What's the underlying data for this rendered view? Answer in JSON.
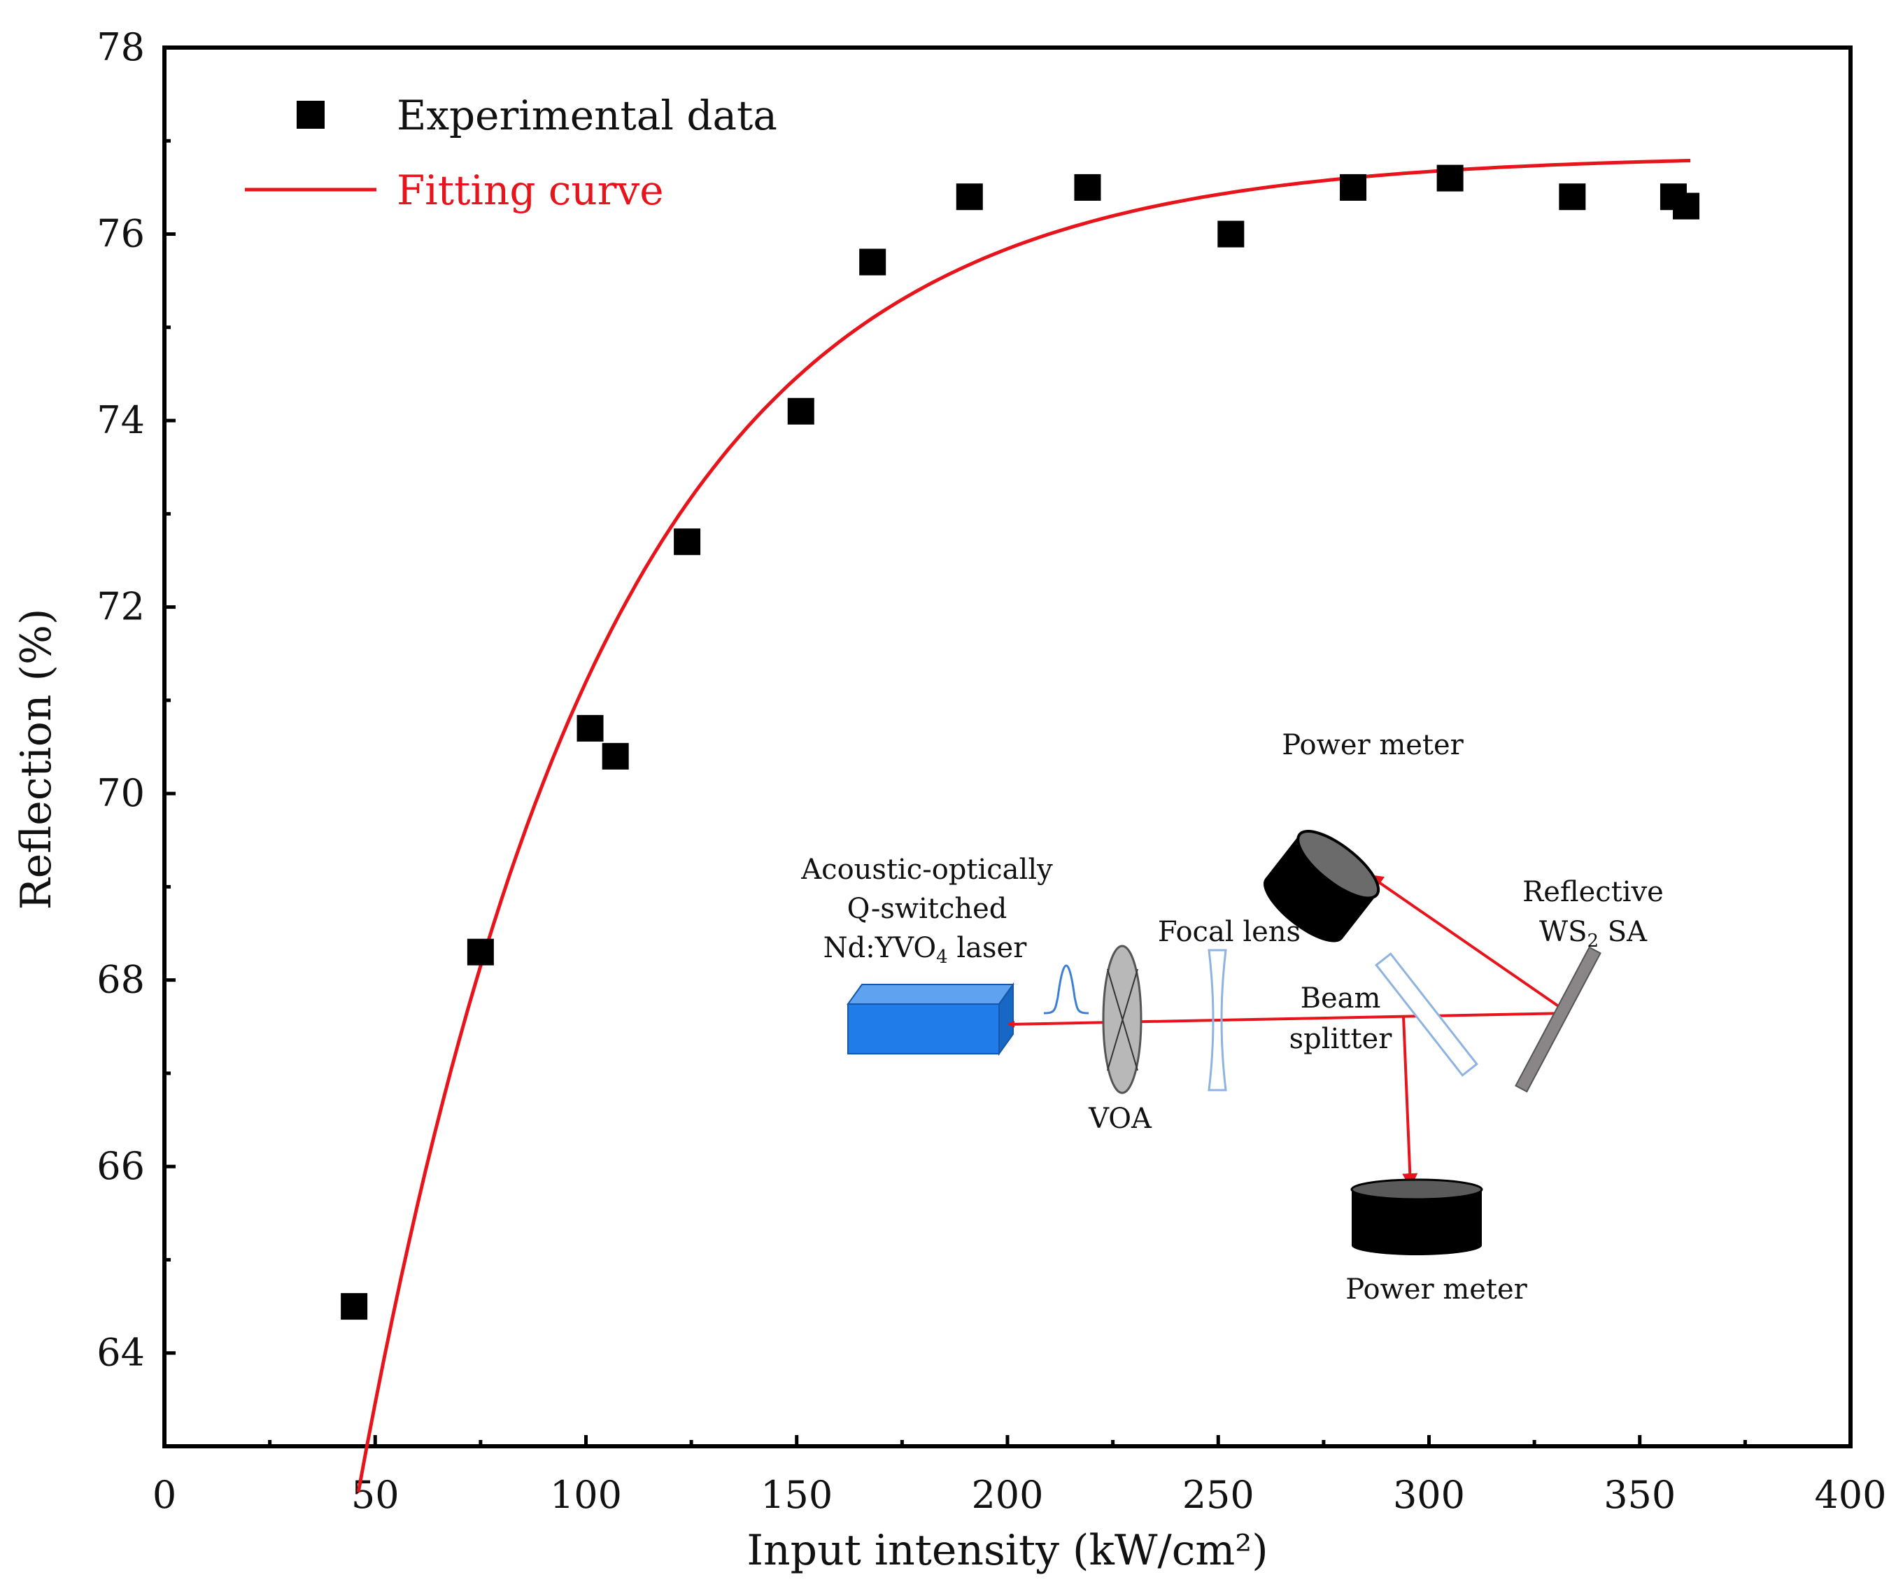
{
  "chart_data": {
    "type": "scatter",
    "title": "",
    "xlabel": "Input intensity (kW/cm²)",
    "ylabel": "Reflection (%)",
    "xlim": [
      0,
      400
    ],
    "ylim": [
      63,
      78
    ],
    "x_ticks": [
      0,
      50,
      100,
      150,
      200,
      250,
      300,
      350,
      400
    ],
    "y_ticks": [
      64,
      66,
      68,
      70,
      72,
      74,
      76,
      78
    ],
    "grid": false,
    "legend_position": "top-left",
    "series": [
      {
        "name": "Experimental data",
        "kind": "scatter",
        "marker": "square",
        "color": "#000000",
        "x": [
          45,
          75,
          101,
          107,
          124,
          151,
          168,
          191,
          219,
          253,
          282,
          305,
          334,
          358,
          361
        ],
        "y": [
          64.5,
          68.3,
          70.7,
          70.4,
          72.7,
          74.1,
          75.7,
          76.4,
          76.5,
          76.0,
          76.5,
          76.6,
          76.4,
          76.4,
          76.3
        ]
      },
      {
        "name": "Fitting curve",
        "kind": "line",
        "color": "#e8141b",
        "model": "y = 76.85 - A*exp(-x/t)",
        "params": {
          "y0": 76.85,
          "A": 31.7,
          "t": 58
        },
        "x_range": [
          46,
          362
        ]
      }
    ]
  },
  "inset": {
    "labels": {
      "laser_line1": "Acoustic-optically",
      "laser_line2": "Q-switched",
      "laser_line3": "Nd:YVO",
      "laser_sub": "4",
      "laser_suffix": " laser",
      "voa": "VOA",
      "focal_lens": "Focal lens",
      "beam_line1": "Beam",
      "beam_line2": "splitter",
      "reflective_line1": "Reflective",
      "reflective_ws": "WS",
      "reflective_sub": "2",
      "reflective_suffix": " SA",
      "power_meter_top": "Power meter",
      "power_meter_bottom": "Power meter"
    },
    "colors": {
      "laser_box": "#1f7ce8",
      "beam": "#e8141b",
      "lens": "#8fb3e0",
      "voa": "#b8b8b8",
      "mirror": "#8a8587",
      "meter": "#000000"
    }
  }
}
